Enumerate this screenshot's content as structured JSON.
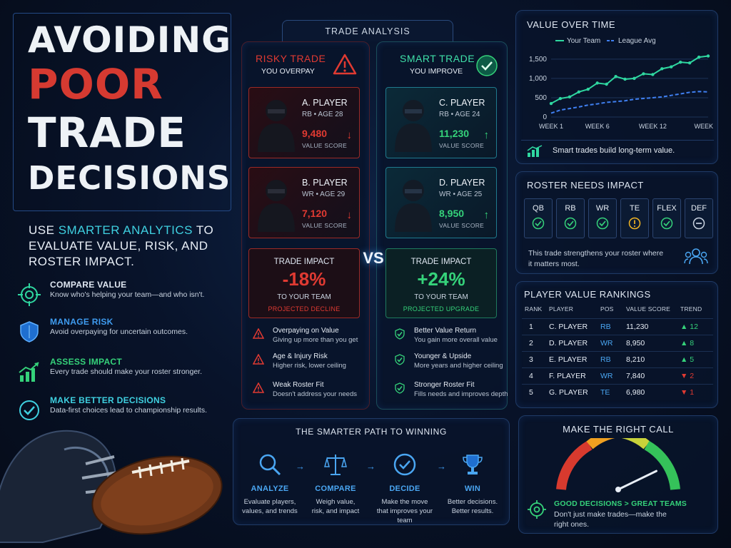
{
  "hero": {
    "line1": "AVOIDING",
    "line2": "POOR",
    "line3": "TRADE",
    "line4": "DECISIONS"
  },
  "subtitle": {
    "pre": "USE ",
    "accent": "SMARTER ANALYTICS",
    "post": " TO EVALUATE VALUE, RISK, AND ROSTER IMPACT."
  },
  "features": [
    {
      "title": "COMPARE VALUE",
      "desc": "Know who's helping your team—and who isn't.",
      "icon": "target-icon"
    },
    {
      "title": "MANAGE RISK",
      "desc": "Avoid overpaying for uncertain outcomes.",
      "icon": "shield-icon"
    },
    {
      "title": "ASSESS IMPACT",
      "desc": "Every trade should make your roster stronger.",
      "icon": "bar-growth-icon"
    },
    {
      "title": "MAKE BETTER DECISIONS",
      "desc": "Data-first choices lead to championship results.",
      "icon": "check-circle-icon"
    }
  ],
  "trade": {
    "title": "TRADE ANALYSIS",
    "vs": "VS",
    "risky": {
      "title": "RISKY TRADE",
      "sub": "YOU OVERPAY"
    },
    "smart": {
      "title": "SMART TRADE",
      "sub": "YOU IMPROVE"
    },
    "value_label": "VALUE SCORE",
    "players": [
      {
        "name": "A. PLAYER",
        "pos": "RB • AGE 28",
        "score": "9,480"
      },
      {
        "name": "B. PLAYER",
        "pos": "WR • AGE 29",
        "score": "7,120"
      },
      {
        "name": "C. PLAYER",
        "pos": "RB • AGE 24",
        "score": "11,230"
      },
      {
        "name": "D. PLAYER",
        "pos": "WR • AGE 25",
        "score": "8,950"
      }
    ],
    "impact_risky": {
      "label": "TRADE IMPACT",
      "value": "-18%",
      "team": "TO YOUR TEAM",
      "note": "PROJECTED DECLINE"
    },
    "impact_smart": {
      "label": "TRADE IMPACT",
      "value": "+24%",
      "team": "TO YOUR TEAM",
      "note": "PROJECTED UPGRADE"
    },
    "risks": [
      {
        "title": "Overpaying on Value",
        "desc": "Giving up more than you get"
      },
      {
        "title": "Age & Injury Risk",
        "desc": "Higher risk, lower ceiling"
      },
      {
        "title": "Weak Roster Fit",
        "desc": "Doesn't address your needs"
      }
    ],
    "benefits": [
      {
        "title": "Better Value Return",
        "desc": "You gain more overall value"
      },
      {
        "title": "Younger & Upside",
        "desc": "More years and higher ceiling"
      },
      {
        "title": "Stronger Roster Fit",
        "desc": "Fills needs and improves depth"
      }
    ]
  },
  "path": {
    "title": "THE SMARTER PATH TO WINNING",
    "steps": [
      {
        "title": "ANALYZE",
        "d1": "Evaluate players,",
        "d2": "values, and trends"
      },
      {
        "title": "COMPARE",
        "d1": "Weigh value,",
        "d2": "risk, and impact"
      },
      {
        "title": "DECIDE",
        "d1": "Make the move",
        "d2": "that improves your team"
      },
      {
        "title": "WIN",
        "d1": "Better decisions.",
        "d2": "Better results."
      }
    ]
  },
  "value_chart": {
    "title": "VALUE OVER TIME",
    "footer": "Smart trades build long-term value.",
    "yticks": [
      "1,500",
      "1,000",
      "500",
      "0"
    ],
    "xticks": [
      "WEEK 1",
      "WEEK 6",
      "WEEK 12",
      "WEEK 18"
    ]
  },
  "chart_data": {
    "type": "line",
    "title": "VALUE OVER TIME",
    "x": [
      1,
      2,
      3,
      4,
      5,
      6,
      7,
      8,
      9,
      10,
      11,
      12,
      13,
      14,
      15,
      16,
      17,
      18
    ],
    "series": [
      {
        "name": "Your Team",
        "values": [
          350,
          480,
          520,
          650,
          720,
          880,
          850,
          1050,
          980,
          1000,
          1120,
          1100,
          1250,
          1300,
          1420,
          1400,
          1550,
          1580
        ],
        "color": "#2fd7a0"
      },
      {
        "name": "League Avg",
        "values": [
          100,
          180,
          220,
          260,
          310,
          340,
          380,
          400,
          420,
          460,
          480,
          500,
          520,
          560,
          600,
          640,
          660,
          650
        ],
        "color": "#3f7ff0"
      }
    ],
    "ylim": [
      0,
      1700
    ],
    "xlabel": "",
    "ylabel": ""
  },
  "roster": {
    "title": "ROSTER NEEDS IMPACT",
    "chips": [
      {
        "label": "QB",
        "state": "ok"
      },
      {
        "label": "RB",
        "state": "ok"
      },
      {
        "label": "WR",
        "state": "ok"
      },
      {
        "label": "TE",
        "state": "warn"
      },
      {
        "label": "FLEX",
        "state": "ok"
      },
      {
        "label": "DEF",
        "state": "neutral"
      }
    ],
    "note1": "This trade strengthens your roster where",
    "note2": "it matters most."
  },
  "rankings": {
    "title": "PLAYER VALUE RANKINGS",
    "headers": [
      "RANK",
      "PLAYER",
      "POS",
      "VALUE SCORE",
      "TREND"
    ],
    "rows": [
      {
        "rank": "1",
        "player": "C. PLAYER",
        "pos": "RB",
        "score": "11,230",
        "trend": "▲ 12",
        "up": true
      },
      {
        "rank": "2",
        "player": "D. PLAYER",
        "pos": "WR",
        "score": "8,950",
        "trend": "▲ 8",
        "up": true
      },
      {
        "rank": "3",
        "player": "E. PLAYER",
        "pos": "RB",
        "score": "8,210",
        "trend": "▲ 5",
        "up": true
      },
      {
        "rank": "4",
        "player": "F. PLAYER",
        "pos": "WR",
        "score": "7,840",
        "trend": "▼ 2",
        "up": false
      },
      {
        "rank": "5",
        "player": "G. PLAYER",
        "pos": "TE",
        "score": "6,980",
        "trend": "▼ 1",
        "up": false
      }
    ]
  },
  "right_call": {
    "title": "MAKE THE RIGHT CALL",
    "gauge_level": 0.85,
    "headline": "GOOD DECISIONS > GREAT TEAMS",
    "d1": "Don't just make trades—make the",
    "d2": "right ones."
  },
  "colors": {
    "red": "#e03a32",
    "green": "#35d27a",
    "blue": "#3f9cf0",
    "amber": "#f2b523"
  }
}
